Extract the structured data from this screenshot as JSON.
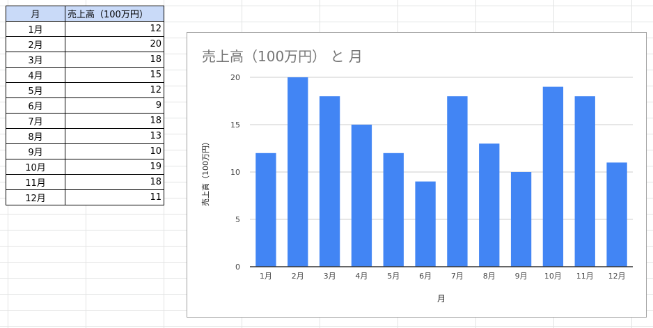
{
  "table": {
    "header_month": "月",
    "header_sales": "売上高（100万円）",
    "rows": [
      {
        "month": "1月",
        "sales": "12"
      },
      {
        "month": "2月",
        "sales": "20"
      },
      {
        "month": "3月",
        "sales": "18"
      },
      {
        "month": "4月",
        "sales": "15"
      },
      {
        "month": "5月",
        "sales": "12"
      },
      {
        "month": "6月",
        "sales": "9"
      },
      {
        "month": "7月",
        "sales": "18"
      },
      {
        "month": "8月",
        "sales": "13"
      },
      {
        "month": "9月",
        "sales": "10"
      },
      {
        "month": "10月",
        "sales": "19"
      },
      {
        "month": "11月",
        "sales": "18"
      },
      {
        "month": "12月",
        "sales": "11"
      }
    ]
  },
  "chart_data": {
    "type": "bar",
    "title": "売上高（100万円） と 月",
    "xlabel": "月",
    "ylabel": "売上高（100万円）",
    "categories": [
      "1月",
      "2月",
      "3月",
      "4月",
      "5月",
      "6月",
      "7月",
      "8月",
      "9月",
      "10月",
      "11月",
      "12月"
    ],
    "values": [
      12,
      20,
      18,
      15,
      12,
      9,
      18,
      13,
      10,
      19,
      18,
      11
    ],
    "ylim": [
      0,
      20
    ],
    "yticks": [
      0,
      5,
      10,
      15,
      20
    ],
    "grid": true,
    "bar_color": "#4285f4",
    "legend": "none"
  }
}
